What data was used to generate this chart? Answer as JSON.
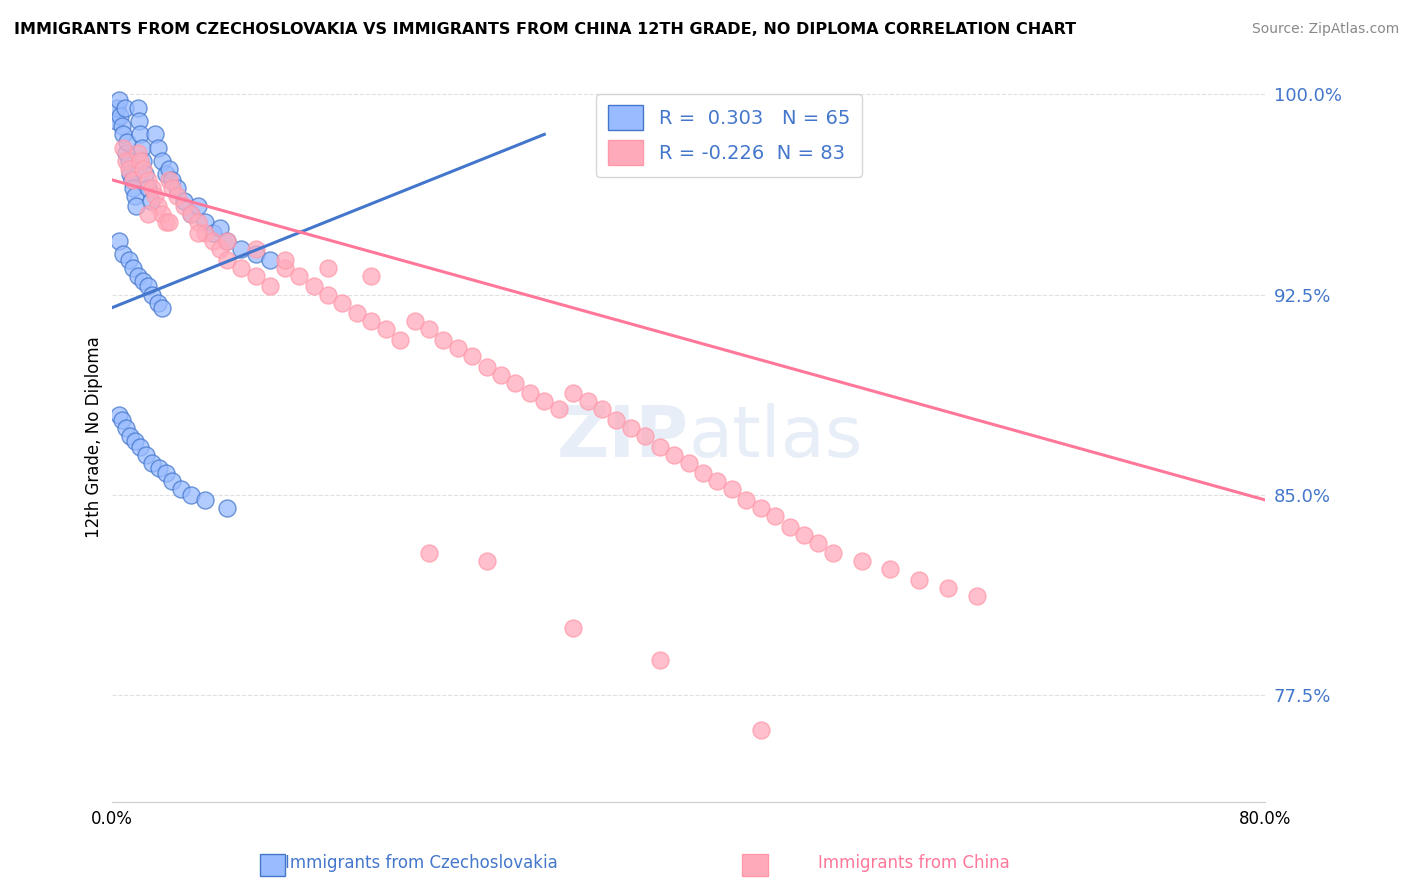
{
  "title": "IMMIGRANTS FROM CZECHOSLOVAKIA VS IMMIGRANTS FROM CHINA 12TH GRADE, NO DIPLOMA CORRELATION CHART",
  "source": "Source: ZipAtlas.com",
  "ylabel": "12th Grade, No Diploma",
  "legend_label1": "Immigrants from Czechoslovakia",
  "legend_label2": "Immigrants from China",
  "R1": 0.303,
  "N1": 65,
  "R2": -0.226,
  "N2": 83,
  "xlim": [
    0.0,
    0.8
  ],
  "ylim": [
    0.735,
    1.008
  ],
  "yticks": [
    0.775,
    0.85,
    0.925,
    1.0
  ],
  "ytick_labels": [
    "77.5%",
    "85.0%",
    "92.5%",
    "100.0%"
  ],
  "xtick_labels": [
    "0.0%",
    "80.0%"
  ],
  "color_blue": "#99bbff",
  "color_pink": "#ffaabb",
  "color_blue_line": "#4477cc",
  "color_pink_line": "#ff7799",
  "background_color": "#ffffff",
  "watermark_zip": "ZIP",
  "watermark_atlas": "atlas",
  "blue_trend_x": [
    0.0,
    0.3
  ],
  "blue_trend_y": [
    0.92,
    0.985
  ],
  "pink_trend_x": [
    0.0,
    0.8
  ],
  "pink_trend_y": [
    0.968,
    0.848
  ],
  "blue_points_x": [
    0.003,
    0.004,
    0.005,
    0.006,
    0.007,
    0.008,
    0.009,
    0.01,
    0.011,
    0.012,
    0.013,
    0.014,
    0.015,
    0.016,
    0.017,
    0.018,
    0.019,
    0.02,
    0.021,
    0.022,
    0.023,
    0.025,
    0.027,
    0.03,
    0.032,
    0.035,
    0.038,
    0.04,
    0.042,
    0.045,
    0.05,
    0.055,
    0.06,
    0.065,
    0.07,
    0.075,
    0.08,
    0.09,
    0.1,
    0.11,
    0.005,
    0.008,
    0.012,
    0.015,
    0.018,
    0.022,
    0.025,
    0.028,
    0.032,
    0.035,
    0.005,
    0.007,
    0.01,
    0.013,
    0.016,
    0.02,
    0.024,
    0.028,
    0.033,
    0.038,
    0.042,
    0.048,
    0.055,
    0.065,
    0.08
  ],
  "blue_points_y": [
    0.99,
    0.995,
    0.998,
    0.992,
    0.988,
    0.985,
    0.995,
    0.978,
    0.982,
    0.975,
    0.97,
    0.968,
    0.965,
    0.962,
    0.958,
    0.995,
    0.99,
    0.985,
    0.98,
    0.975,
    0.97,
    0.965,
    0.96,
    0.985,
    0.98,
    0.975,
    0.97,
    0.972,
    0.968,
    0.965,
    0.96,
    0.955,
    0.958,
    0.952,
    0.948,
    0.95,
    0.945,
    0.942,
    0.94,
    0.938,
    0.945,
    0.94,
    0.938,
    0.935,
    0.932,
    0.93,
    0.928,
    0.925,
    0.922,
    0.92,
    0.88,
    0.878,
    0.875,
    0.872,
    0.87,
    0.868,
    0.865,
    0.862,
    0.86,
    0.858,
    0.855,
    0.852,
    0.85,
    0.848,
    0.845
  ],
  "pink_points_x": [
    0.008,
    0.01,
    0.012,
    0.015,
    0.018,
    0.02,
    0.022,
    0.025,
    0.028,
    0.03,
    0.032,
    0.035,
    0.038,
    0.04,
    0.042,
    0.045,
    0.05,
    0.055,
    0.06,
    0.065,
    0.07,
    0.075,
    0.08,
    0.09,
    0.1,
    0.11,
    0.12,
    0.13,
    0.14,
    0.15,
    0.16,
    0.17,
    0.18,
    0.19,
    0.2,
    0.21,
    0.22,
    0.23,
    0.24,
    0.25,
    0.26,
    0.27,
    0.28,
    0.29,
    0.3,
    0.31,
    0.32,
    0.33,
    0.34,
    0.35,
    0.36,
    0.37,
    0.38,
    0.39,
    0.4,
    0.41,
    0.42,
    0.43,
    0.44,
    0.45,
    0.46,
    0.47,
    0.48,
    0.49,
    0.5,
    0.52,
    0.54,
    0.56,
    0.58,
    0.6,
    0.025,
    0.04,
    0.06,
    0.08,
    0.1,
    0.12,
    0.15,
    0.18,
    0.22,
    0.26,
    0.32,
    0.38,
    0.45
  ],
  "pink_points_y": [
    0.98,
    0.975,
    0.972,
    0.968,
    0.978,
    0.975,
    0.972,
    0.968,
    0.965,
    0.962,
    0.958,
    0.955,
    0.952,
    0.968,
    0.965,
    0.962,
    0.958,
    0.955,
    0.952,
    0.948,
    0.945,
    0.942,
    0.938,
    0.935,
    0.932,
    0.928,
    0.935,
    0.932,
    0.928,
    0.925,
    0.922,
    0.918,
    0.915,
    0.912,
    0.908,
    0.915,
    0.912,
    0.908,
    0.905,
    0.902,
    0.898,
    0.895,
    0.892,
    0.888,
    0.885,
    0.882,
    0.888,
    0.885,
    0.882,
    0.878,
    0.875,
    0.872,
    0.868,
    0.865,
    0.862,
    0.858,
    0.855,
    0.852,
    0.848,
    0.845,
    0.842,
    0.838,
    0.835,
    0.832,
    0.828,
    0.825,
    0.822,
    0.818,
    0.815,
    0.812,
    0.955,
    0.952,
    0.948,
    0.945,
    0.942,
    0.938,
    0.935,
    0.932,
    0.828,
    0.825,
    0.8,
    0.788,
    0.762
  ]
}
